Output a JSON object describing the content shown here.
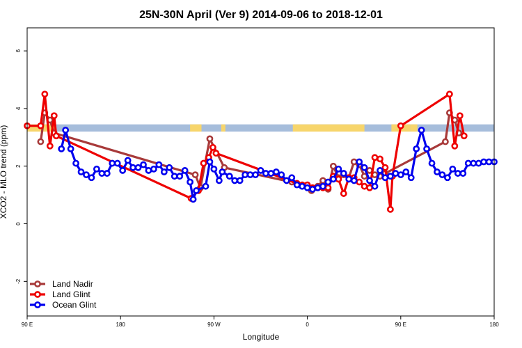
{
  "chart_data": {
    "type": "line",
    "title": "25N-30N April (Ver 9)   2014-09-06 to 2018-12-01",
    "xlabel": "Longitude",
    "ylabel": "XCO2 - MLO trend (ppm)",
    "xlim": [
      90,
      540
    ],
    "ylim": [
      -3.2,
      6.8
    ],
    "x_ticks": [
      {
        "value": 90,
        "label": "90 E"
      },
      {
        "value": 180,
        "label": "180"
      },
      {
        "value": 270,
        "label": "90 W"
      },
      {
        "value": 360,
        "label": "0"
      },
      {
        "value": 450,
        "label": "90 E"
      },
      {
        "value": 540,
        "label": "180"
      }
    ],
    "y_ticks": [
      {
        "value": -2,
        "label": "-2"
      },
      {
        "value": 0,
        "label": "0"
      },
      {
        "value": 2,
        "label": "2"
      },
      {
        "value": 4,
        "label": "4"
      },
      {
        "value": 6,
        "label": "6"
      }
    ],
    "grid": false,
    "legend_position": "bottom-left",
    "land_mask": {
      "y_range": [
        3.2,
        3.45
      ],
      "ocean_color": "#a6bddb",
      "land_color": "#f7d56b",
      "land_segments": [
        [
          90,
          117
        ],
        [
          247,
          258
        ],
        [
          277,
          281
        ],
        [
          346,
          415
        ],
        [
          441,
          459
        ],
        [
          459,
          466
        ]
      ]
    },
    "series": [
      {
        "name": "Land Nadir",
        "color": "#a83a3a",
        "x": [
          103,
          107,
          112,
          116,
          252,
          257,
          266,
          280,
          345,
          350,
          355,
          364,
          370,
          375,
          380,
          385,
          390,
          395,
          400,
          405,
          410,
          415,
          420,
          425,
          430,
          435,
          493,
          497,
          502,
          506
        ],
        "y": [
          2.85,
          3.85,
          3.6,
          3.15,
          1.7,
          1.25,
          2.95,
          1.95,
          1.45,
          1.4,
          1.3,
          1.15,
          1.3,
          1.5,
          1.2,
          2.0,
          1.6,
          1.7,
          1.6,
          2.15,
          2.05,
          1.65,
          1.85,
          1.7,
          1.65,
          1.75,
          2.85,
          3.85,
          3.6,
          3.15
        ]
      },
      {
        "name": "Land Glint",
        "color": "#ee0000",
        "x": [
          90,
          103,
          107,
          112,
          116,
          118,
          248,
          255,
          260,
          265,
          269,
          272,
          350,
          355,
          360,
          365,
          370,
          375,
          380,
          385,
          390,
          395,
          400,
          405,
          410,
          415,
          420,
          425,
          430,
          435,
          440,
          442,
          450,
          497,
          502,
          507,
          511
        ],
        "y": [
          3.4,
          3.4,
          4.5,
          2.7,
          3.75,
          3.05,
          0.88,
          1.15,
          2.1,
          2.3,
          2.65,
          2.45,
          1.4,
          1.35,
          1.35,
          1.25,
          1.25,
          1.25,
          1.25,
          1.65,
          1.55,
          1.05,
          1.6,
          1.6,
          1.45,
          1.3,
          1.25,
          2.3,
          2.25,
          1.95,
          0.5,
          1.65,
          3.4,
          4.5,
          2.7,
          3.75,
          3.05
        ]
      },
      {
        "name": "Ocean Glint",
        "color": "#0000ee",
        "x": [
          123,
          127,
          132,
          137,
          142,
          147,
          152,
          157,
          162,
          167,
          172,
          177,
          182,
          187,
          192,
          197,
          202,
          207,
          212,
          217,
          222,
          227,
          232,
          237,
          242,
          247,
          250,
          253,
          262,
          266,
          270,
          275,
          278,
          285,
          290,
          295,
          300,
          305,
          310,
          315,
          320,
          325,
          330,
          335,
          340,
          345,
          350,
          355,
          360,
          365,
          370,
          375,
          380,
          385,
          390,
          395,
          400,
          405,
          410,
          415,
          420,
          425,
          430,
          435,
          440,
          445,
          450,
          455,
          460,
          465,
          470,
          475,
          480,
          485,
          490,
          495,
          500,
          505,
          510,
          515,
          520,
          525,
          530,
          535,
          540
        ],
        "y": [
          2.6,
          3.25,
          2.6,
          2.1,
          1.8,
          1.7,
          1.6,
          1.9,
          1.75,
          1.75,
          2.1,
          2.1,
          1.85,
          2.2,
          1.95,
          1.95,
          2.05,
          1.85,
          1.9,
          2.05,
          1.8,
          1.95,
          1.65,
          1.65,
          1.85,
          1.45,
          0.85,
          1.15,
          1.3,
          2.15,
          1.9,
          1.5,
          1.8,
          1.65,
          1.5,
          1.5,
          1.7,
          1.7,
          1.7,
          1.85,
          1.75,
          1.75,
          1.8,
          1.7,
          1.5,
          1.6,
          1.35,
          1.3,
          1.25,
          1.2,
          1.25,
          1.3,
          1.45,
          1.55,
          1.9,
          1.75,
          1.55,
          1.5,
          2.15,
          1.95,
          1.5,
          1.3,
          1.85,
          1.6,
          1.65,
          1.75,
          1.7,
          1.8,
          1.6,
          2.6,
          3.25,
          2.6,
          2.1,
          1.8,
          1.7,
          1.6,
          1.9,
          1.75,
          1.75,
          2.1,
          2.1,
          2.1,
          2.15,
          2.15,
          2.15
        ]
      }
    ]
  }
}
